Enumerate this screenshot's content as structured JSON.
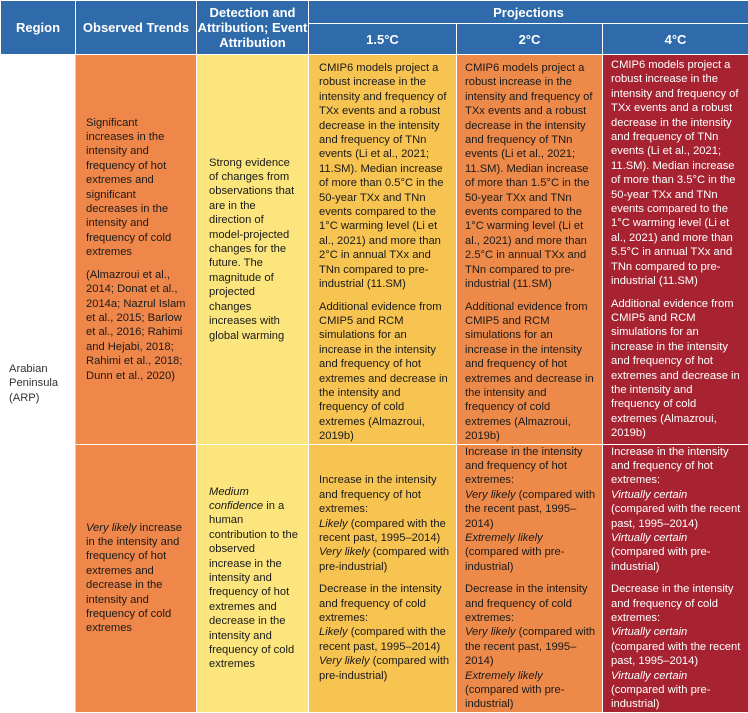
{
  "headers": {
    "region": "Region",
    "observed": "Observed Trends",
    "detection": "Detection and Attribution; Event Attribution",
    "projections": "Projections",
    "p15": "1.5°C",
    "p2": "2°C",
    "p4": "4°C"
  },
  "region": "Arabian Peninsula (ARP)",
  "row1": {
    "observed": [
      "Significant increases in the intensity and frequency of hot extremes and significant decreases in the intensity and frequency of cold extremes",
      "(Almazroui et al., 2014; Donat et al., 2014a; Nazrul Islam et al., 2015; Barlow et al., 2016; Rahimi and Hejabi, 2018; Rahimi et al., 2018; Dunn et al., 2020)"
    ],
    "detection": "Strong evidence of changes from observations that are in the direction of model-projected changes for the future. The magnitude of projected changes increases with global warming",
    "p15": [
      "CMIP6 models project a robust increase in the intensity and frequency of TXx events and a robust decrease in the intensity and frequency of TNn events (Li et al., 2021; 11.SM). Median increase of more than 0.5°C in the 50-year TXx and TNn events compared to the 1°C warming level (Li et al., 2021) and more than 2°C in annual TXx and TNn compared to pre-industrial (11.SM)",
      "Additional evidence from CMIP5 and RCM simulations for an increase in the intensity and frequency of hot extremes and decrease in the intensity and frequency of cold extremes (Almazroui, 2019b)"
    ],
    "p2": [
      "CMIP6 models project a robust increase in the intensity and frequency of TXx events and a robust decrease in the intensity and frequency of TNn events (Li et al., 2021; 11.SM). Median increase of more than 1.5°C in the 50-year TXx and TNn events compared to the 1°C warming level (Li et al., 2021) and more than 2.5°C in annual TXx and TNn compared to pre-industrial (11.SM)",
      "Additional evidence from CMIP5 and RCM simulations for an increase in the intensity and frequency of hot extremes and decrease in the intensity and frequency of cold extremes (Almazroui, 2019b)"
    ],
    "p4": [
      "CMIP6 models project a robust increase in the intensity and frequency of TXx events and a robust decrease in the intensity and frequency of TNn events (Li et al., 2021; 11.SM). Median increase of more than 3.5°C in the 50-year TXx  and TNn events compared to the 1°C warming level (Li et al., 2021) and more than 5.5°C in annual TXx and TNn compared to pre-industrial (11.SM)",
      "Additional evidence from CMIP5 and RCM simulations for an increase in the intensity and frequency of hot extremes and decrease in the intensity and frequency of cold extremes (Almazroui, 2019b)"
    ]
  },
  "row2": {
    "observed_likelihood": "Very likely",
    "observed_rest": " increase in the intensity and frequency of hot extremes and decrease in the intensity and frequency of cold extremes",
    "detection_confidence": "Medium confidence",
    "detection_rest": " in a human contribution to the observed increase in the intensity and frequency of hot extremes and decrease in the intensity and frequency of cold extremes",
    "hot_intro": "Increase in the intensity and frequency of hot extremes:",
    "cold_intro": "Decrease in the intensity and frequency of cold extremes:",
    "recent_suffix": " (compared with the recent past, 1995–2014)",
    "preind_suffix": " (compared with pre-industrial)",
    "p15": {
      "a": "Likely",
      "b": "Very likely"
    },
    "p2": {
      "a": "Very likely",
      "b": "Extremely likely"
    },
    "p4": {
      "a": "Virtually certain",
      "b": "Virtually certain"
    }
  }
}
